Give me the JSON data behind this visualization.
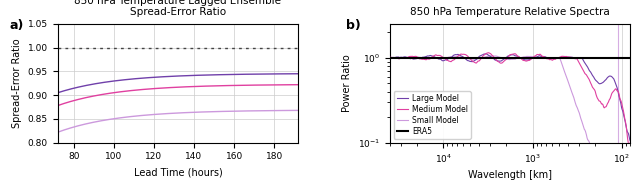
{
  "panel_a": {
    "title": "850 hPa Temperature Lagged Ensemble\nSpread-Error Ratio",
    "xlabel": "Lead Time (hours)",
    "ylabel": "Spread-Error Ratio",
    "xlim": [
      72,
      192
    ],
    "ylim": [
      0.8,
      1.05
    ],
    "yticks": [
      0.8,
      0.85,
      0.9,
      0.95,
      1.0,
      1.05
    ],
    "xticks": [
      80,
      100,
      120,
      140,
      160,
      180
    ],
    "hline_y": 1.0,
    "lines": [
      {
        "color": "#7040AA",
        "label": "Large Model",
        "start": 0.905,
        "end": 0.945
      },
      {
        "color": "#E040A0",
        "label": "Medium Model",
        "start": 0.878,
        "end": 0.922
      },
      {
        "color": "#CC99DD",
        "label": "Small Model",
        "start": 0.822,
        "end": 0.868
      }
    ]
  },
  "panel_b": {
    "title": "850 hPa Temperature Relative Spectra",
    "xlabel": "Wavelength [km]",
    "ylabel": "Power Ratio",
    "xlim": [
      40000,
      80
    ],
    "ylim": [
      0.1,
      2.5
    ],
    "lines": [
      {
        "color": "#7040AA",
        "label": "Large Model",
        "linewidth": 0.8
      },
      {
        "color": "#E040A0",
        "label": "Medium Model",
        "linewidth": 0.8
      },
      {
        "color": "#CC99DD",
        "label": "Small Model",
        "linewidth": 0.8
      },
      {
        "color": "#000000",
        "label": "ERA5",
        "linewidth": 1.5
      }
    ],
    "vline_x": 111,
    "vline_color": "#CC99DD"
  },
  "label_a": "a)",
  "label_b": "b)"
}
